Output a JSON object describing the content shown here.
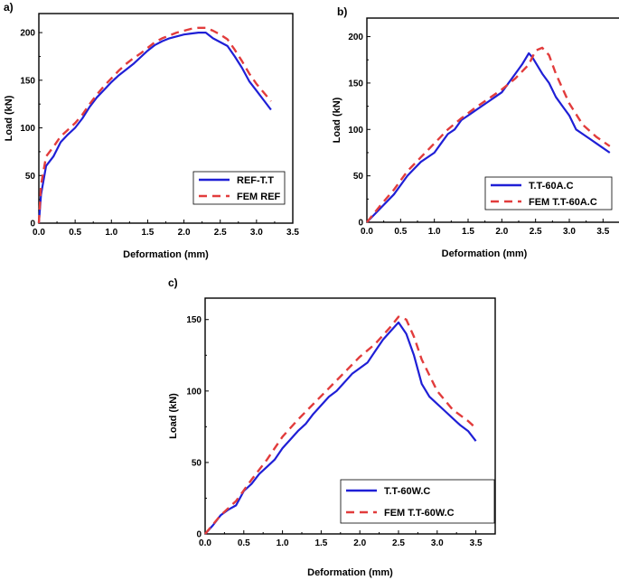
{
  "chart_data": [
    {
      "type": "line",
      "panel_label": "a)",
      "xlabel": "Deformation (mm)",
      "ylabel": "Load (kN)",
      "xlim": [
        0.0,
        3.5
      ],
      "ylim": [
        0,
        220
      ],
      "xticks": [
        "0.0",
        "0.5",
        "1.0",
        "1.5",
        "2.0",
        "2.5",
        "3.0",
        "3.5"
      ],
      "yticks": [
        "0",
        "50",
        "100",
        "150",
        "200"
      ],
      "legend_position": "bottom-right",
      "series": [
        {
          "name": "REF-T.T",
          "color": "#1f1fd6",
          "style": "solid",
          "x": [
            0.0,
            0.03,
            0.1,
            0.2,
            0.3,
            0.4,
            0.5,
            0.6,
            0.7,
            0.8,
            0.9,
            1.0,
            1.1,
            1.2,
            1.3,
            1.4,
            1.5,
            1.6,
            1.7,
            1.8,
            1.9,
            2.0,
            2.1,
            2.2,
            2.3,
            2.4,
            2.5,
            2.6,
            2.7,
            2.8,
            2.9,
            3.0,
            3.1,
            3.2
          ],
          "y": [
            0,
            30,
            60,
            70,
            85,
            93,
            100,
            110,
            122,
            132,
            140,
            148,
            155,
            161,
            167,
            174,
            181,
            187,
            191,
            194,
            196,
            198,
            199,
            200,
            200,
            194,
            190,
            186,
            175,
            163,
            149,
            139,
            129,
            119
          ]
        },
        {
          "name": "FEM REF",
          "color": "#e23c3c",
          "style": "dashed",
          "x": [
            0.0,
            0.03,
            0.1,
            0.2,
            0.3,
            0.4,
            0.5,
            0.6,
            0.7,
            0.8,
            0.9,
            1.0,
            1.1,
            1.2,
            1.3,
            1.4,
            1.5,
            1.6,
            1.7,
            1.8,
            1.9,
            2.0,
            2.1,
            2.2,
            2.3,
            2.4,
            2.5,
            2.6,
            2.7,
            2.8,
            2.9,
            3.0,
            3.1,
            3.2
          ],
          "y": [
            0,
            40,
            70,
            80,
            91,
            98,
            105,
            114,
            125,
            135,
            144,
            152,
            160,
            167,
            173,
            178,
            184,
            190,
            194,
            197,
            200,
            202,
            204,
            205,
            205,
            202,
            198,
            193,
            182,
            170,
            157,
            146,
            137,
            128
          ]
        }
      ]
    },
    {
      "type": "line",
      "panel_label": "b)",
      "xlabel": "Deformation (mm)",
      "ylabel": "Load (kN)",
      "xlim": [
        0.0,
        3.75
      ],
      "ylim": [
        0,
        220
      ],
      "xticks": [
        "0.0",
        "0.5",
        "1.0",
        "1.5",
        "2.0",
        "2.5",
        "3.0",
        "3.5"
      ],
      "yticks": [
        "0",
        "50",
        "100",
        "150",
        "200"
      ],
      "legend_position": "bottom-right",
      "series": [
        {
          "name": "T.T-60A.C",
          "color": "#1f1fd6",
          "style": "solid",
          "x": [
            0.0,
            0.2,
            0.4,
            0.6,
            0.8,
            0.9,
            1.0,
            1.1,
            1.2,
            1.3,
            1.4,
            1.5,
            1.6,
            1.7,
            1.8,
            1.9,
            2.0,
            2.1,
            2.2,
            2.3,
            2.4,
            2.45,
            2.5,
            2.6,
            2.7,
            2.8,
            2.9,
            3.0,
            3.1,
            3.2,
            3.3,
            3.4,
            3.5,
            3.6
          ],
          "y": [
            0,
            15,
            30,
            50,
            65,
            70,
            75,
            85,
            95,
            100,
            110,
            115,
            120,
            125,
            130,
            135,
            140,
            150,
            160,
            170,
            182,
            178,
            172,
            160,
            150,
            135,
            125,
            115,
            100,
            95,
            90,
            85,
            80,
            75
          ]
        },
        {
          "name": "FEM T.T-60A.C",
          "color": "#e23c3c",
          "style": "dashed",
          "x": [
            0.0,
            0.2,
            0.4,
            0.6,
            0.8,
            1.0,
            1.2,
            1.4,
            1.6,
            1.8,
            2.0,
            2.2,
            2.4,
            2.5,
            2.6,
            2.7,
            2.8,
            3.0,
            3.2,
            3.4,
            3.6
          ],
          "y": [
            0,
            18,
            35,
            55,
            70,
            85,
            100,
            112,
            123,
            133,
            143,
            155,
            170,
            185,
            188,
            180,
            160,
            128,
            105,
            92,
            82
          ]
        }
      ]
    },
    {
      "type": "line",
      "panel_label": "c)",
      "xlabel": "Deformation (mm)",
      "ylabel": "Load (kN)",
      "xlim": [
        0.0,
        3.75
      ],
      "ylim": [
        0,
        165
      ],
      "xticks": [
        "0.0",
        "0.5",
        "1.0",
        "1.5",
        "2.0",
        "2.5",
        "3.0",
        "3.5"
      ],
      "yticks": [
        "0",
        "50",
        "100",
        "150"
      ],
      "legend_position": "bottom-right",
      "series": [
        {
          "name": "T.T-60W.C",
          "color": "#1f1fd6",
          "style": "solid",
          "x": [
            0.0,
            0.1,
            0.2,
            0.3,
            0.4,
            0.5,
            0.6,
            0.7,
            0.8,
            0.9,
            1.0,
            1.1,
            1.2,
            1.3,
            1.4,
            1.5,
            1.6,
            1.7,
            1.8,
            1.9,
            2.0,
            2.1,
            2.2,
            2.3,
            2.4,
            2.5,
            2.6,
            2.7,
            2.8,
            2.9,
            3.0,
            3.1,
            3.2,
            3.3,
            3.4,
            3.5
          ],
          "y": [
            0,
            6,
            13,
            17,
            20,
            30,
            35,
            42,
            47,
            52,
            60,
            66,
            72,
            77,
            84,
            90,
            96,
            100,
            106,
            112,
            116,
            120,
            128,
            136,
            142,
            148,
            140,
            125,
            105,
            96,
            91,
            86,
            81,
            76,
            72,
            65
          ]
        },
        {
          "name": "FEM T.T-60W.C",
          "color": "#e23c3c",
          "style": "dashed",
          "x": [
            0.0,
            0.2,
            0.4,
            0.6,
            0.8,
            1.0,
            1.2,
            1.4,
            1.6,
            1.8,
            2.0,
            2.2,
            2.4,
            2.5,
            2.6,
            2.7,
            2.8,
            3.0,
            3.2,
            3.4,
            3.5
          ],
          "y": [
            0,
            13,
            23,
            38,
            52,
            68,
            80,
            91,
            102,
            113,
            124,
            133,
            145,
            152,
            150,
            138,
            122,
            100,
            87,
            79,
            74
          ]
        }
      ]
    }
  ]
}
